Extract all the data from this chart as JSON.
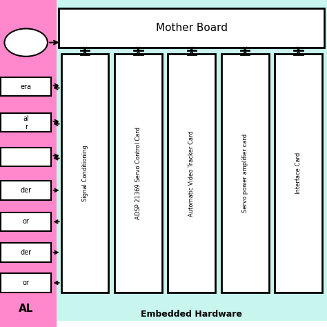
{
  "fig_width": 4.74,
  "fig_height": 4.74,
  "dpi": 100,
  "bg_color": "#ffffff",
  "pink_bg": "#ff88cc",
  "cyan_bg": "#c8f5ee",
  "box_bg": "#ffffff",
  "mother_board_label": "Mother Board",
  "embedded_hw_label": "Embedded Hardware",
  "cards": [
    "Signal Conditioning",
    "ADSP 21369 Servo Control Card",
    "Automatic Video Tracker Card",
    "Servo power amplifier card",
    "Interface Card"
  ],
  "left_box_labels": [
    "era",
    "al\nr",
    "",
    "der",
    "or",
    "der",
    "or"
  ],
  "left_box_arrows": [
    "both",
    "both",
    "both",
    "right",
    "left",
    "right",
    "left"
  ],
  "bottom_left_label": "AL"
}
